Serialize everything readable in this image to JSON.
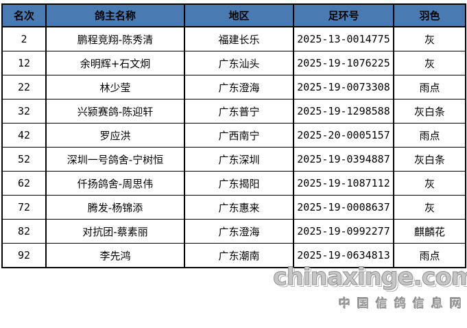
{
  "table": {
    "headers": [
      "名次",
      "鸽主名称",
      "地区",
      "足环号",
      "羽色"
    ],
    "rows": [
      [
        "2",
        "鹏程竞翔-陈秀清",
        "福建长乐",
        "2025-13-0014775",
        "灰"
      ],
      [
        "12",
        "余明辉+石文炯",
        "广东汕头",
        "2025-19-1076225",
        "灰"
      ],
      [
        "22",
        "林少莹",
        "广东澄海",
        "2025-19-0073308",
        "雨点"
      ],
      [
        "32",
        "兴颍赛鸽-陈迎轩",
        "广东普宁",
        "2025-19-1298588",
        "灰白条"
      ],
      [
        "42",
        "罗应洪",
        "广西南宁",
        "2025-20-0005157",
        "雨点"
      ],
      [
        "52",
        "深圳一号鸽舍-宁树恒",
        "广东深圳",
        "2025-19-0394887",
        "灰白条"
      ],
      [
        "62",
        "仟扬鸽舍-周思伟",
        "广东揭阳",
        "2025-19-1087112",
        "灰"
      ],
      [
        "72",
        "腾发-杨锦添",
        "广东惠来",
        "2025-19-0008637",
        "灰"
      ],
      [
        "82",
        "对抗团-蔡素丽",
        "广东澄海",
        "2025-19-0992277",
        "麒麟花"
      ],
      [
        "92",
        "李先鸿",
        "广东潮南",
        "2025-19-0634813",
        "雨点"
      ]
    ],
    "colors": {
      "header_bg": "#4a7ab2",
      "header_text": "#000000",
      "border": "#000000",
      "cell_text": "#000000"
    }
  },
  "watermark": {
    "site": "chinaxinge.com",
    "site_cn": "中国信鸽信息网",
    "color": "#9a9a9a"
  }
}
